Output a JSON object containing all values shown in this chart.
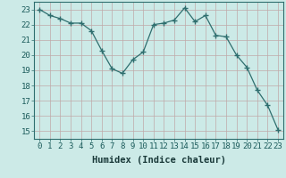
{
  "x": [
    0,
    1,
    2,
    3,
    4,
    5,
    6,
    7,
    8,
    9,
    10,
    11,
    12,
    13,
    14,
    15,
    16,
    17,
    18,
    19,
    20,
    21,
    22,
    23
  ],
  "y": [
    23.0,
    22.6,
    22.4,
    22.1,
    22.1,
    21.6,
    20.3,
    19.1,
    18.8,
    19.7,
    20.2,
    22.0,
    22.1,
    22.3,
    23.1,
    22.2,
    22.6,
    21.3,
    21.2,
    20.0,
    19.2,
    17.7,
    16.7,
    15.1
  ],
  "line_color": "#2e6e6e",
  "marker": "P",
  "marker_size": 2.5,
  "bg_color": "#cceae7",
  "grid_color": "#c0a8a8",
  "xlabel": "Humidex (Indice chaleur)",
  "ylabel_ticks": [
    15,
    16,
    17,
    18,
    19,
    20,
    21,
    22,
    23
  ],
  "xlim": [
    -0.5,
    23.5
  ],
  "ylim": [
    14.5,
    23.5
  ],
  "xlabel_fontsize": 7.5,
  "tick_fontsize": 6.5
}
